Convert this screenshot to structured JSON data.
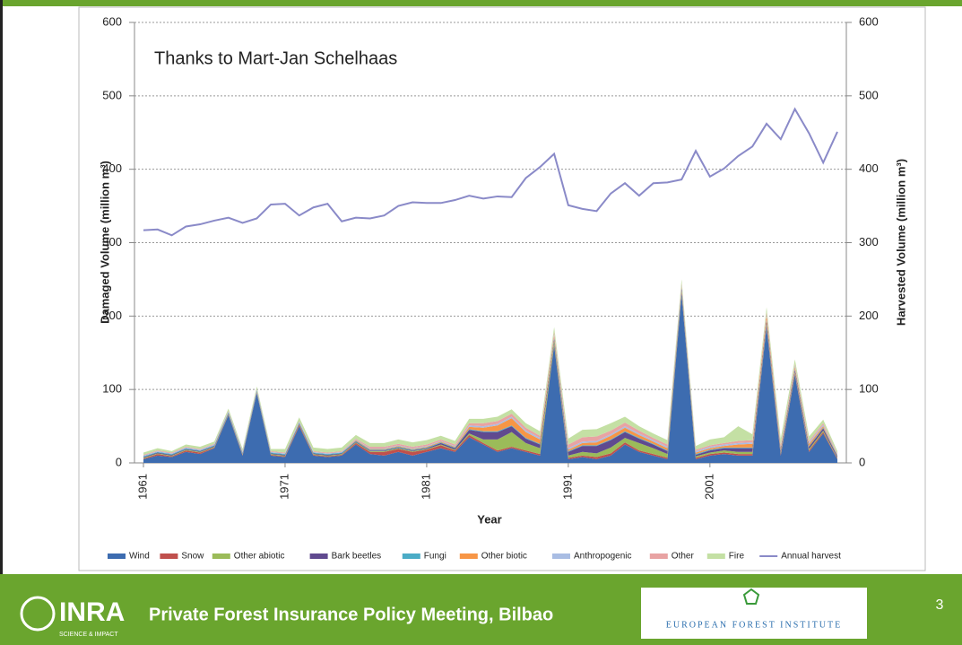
{
  "chart_data": {
    "type": "stacked_area",
    "annotation": "Thanks to Mart-Jan Schelhaas",
    "x_label": "Year",
    "y_label": "Damaged Volume (million m³)",
    "y2_label": "Harvested Volume (million m³)",
    "x": [
      1961,
      1962,
      1963,
      1964,
      1965,
      1966,
      1967,
      1968,
      1969,
      1970,
      1971,
      1972,
      1973,
      1974,
      1975,
      1976,
      1977,
      1978,
      1979,
      1980,
      1981,
      1982,
      1983,
      1984,
      1985,
      1986,
      1987,
      1988,
      1989,
      1990,
      1991,
      1992,
      1993,
      1994,
      1995,
      1996,
      1997,
      1998,
      1999,
      2000,
      2001,
      2002,
      2003,
      2004,
      2005,
      2006,
      2007,
      2008,
      2009,
      2010
    ],
    "xlim": [
      1961,
      2010
    ],
    "xticks": [
      1961,
      1971,
      1981,
      1991,
      2001
    ],
    "ylim": [
      0,
      600
    ],
    "yticks": [
      0,
      100,
      200,
      300,
      400,
      500,
      600
    ],
    "y2lim": [
      0,
      600
    ],
    "y2ticks": [
      0,
      100,
      200,
      300,
      400,
      500,
      600
    ],
    "grid": true,
    "legend": "bottom",
    "series": [
      {
        "name": "Wind",
        "color": "#3d6cb0",
        "values": [
          5,
          10,
          8,
          15,
          12,
          20,
          65,
          10,
          95,
          10,
          8,
          50,
          10,
          8,
          10,
          25,
          12,
          10,
          15,
          10,
          15,
          20,
          15,
          35,
          25,
          15,
          20,
          15,
          10,
          160,
          5,
          8,
          5,
          10,
          25,
          15,
          10,
          5,
          230,
          5,
          10,
          12,
          10,
          10,
          185,
          10,
          120,
          15,
          40,
          5
        ]
      },
      {
        "name": "Snow",
        "color": "#c0504d",
        "values": [
          1,
          2,
          1,
          2,
          2,
          1,
          1,
          1,
          1,
          1,
          1,
          2,
          1,
          1,
          1,
          2,
          3,
          5,
          4,
          5,
          3,
          4,
          2,
          3,
          2,
          2,
          2,
          2,
          2,
          2,
          2,
          2,
          3,
          3,
          3,
          2,
          2,
          2,
          2,
          2,
          2,
          2,
          2,
          2,
          2,
          2,
          2,
          2,
          2,
          1
        ]
      },
      {
        "name": "Other abiotic",
        "color": "#9bbb59",
        "values": [
          1,
          1,
          1,
          1,
          1,
          1,
          1,
          1,
          1,
          1,
          1,
          1,
          1,
          1,
          1,
          1,
          1,
          1,
          1,
          1,
          1,
          1,
          1,
          2,
          5,
          15,
          20,
          10,
          8,
          5,
          3,
          5,
          5,
          8,
          6,
          10,
          8,
          5,
          3,
          2,
          2,
          3,
          3,
          3,
          3,
          2,
          2,
          2,
          2,
          1
        ]
      },
      {
        "name": "Bark beetles",
        "color": "#604a8f",
        "values": [
          1,
          1,
          1,
          1,
          1,
          1,
          1,
          1,
          1,
          1,
          1,
          1,
          1,
          1,
          1,
          1,
          1,
          1,
          1,
          1,
          1,
          2,
          2,
          5,
          10,
          10,
          8,
          6,
          5,
          3,
          5,
          8,
          10,
          10,
          8,
          6,
          5,
          4,
          3,
          2,
          3,
          3,
          5,
          5,
          4,
          3,
          3,
          3,
          3,
          2
        ]
      },
      {
        "name": "Fungi",
        "color": "#4bacc6",
        "values": [
          1,
          1,
          1,
          1,
          1,
          1,
          1,
          1,
          1,
          1,
          1,
          1,
          1,
          1,
          1,
          1,
          1,
          1,
          1,
          1,
          1,
          1,
          1,
          1,
          1,
          1,
          1,
          1,
          1,
          1,
          1,
          1,
          1,
          1,
          1,
          1,
          1,
          1,
          1,
          1,
          1,
          1,
          1,
          1,
          1,
          1,
          1,
          1,
          1,
          1
        ]
      },
      {
        "name": "Other biotic",
        "color": "#f79646",
        "values": [
          0,
          0,
          0,
          0,
          0,
          0,
          0,
          0,
          0,
          0,
          0,
          0,
          0,
          0,
          0,
          1,
          1,
          1,
          1,
          1,
          1,
          1,
          1,
          3,
          5,
          8,
          10,
          8,
          6,
          3,
          2,
          3,
          4,
          5,
          5,
          4,
          3,
          3,
          2,
          2,
          2,
          2,
          4,
          5,
          6,
          3,
          3,
          3,
          2,
          1
        ]
      },
      {
        "name": "Anthropogenic",
        "color": "#a9bde3",
        "values": [
          1,
          1,
          1,
          1,
          1,
          1,
          1,
          1,
          1,
          1,
          1,
          1,
          1,
          1,
          1,
          1,
          1,
          1,
          1,
          1,
          1,
          1,
          1,
          2,
          2,
          2,
          2,
          2,
          2,
          2,
          2,
          2,
          2,
          2,
          2,
          2,
          2,
          2,
          2,
          2,
          2,
          2,
          2,
          2,
          2,
          2,
          2,
          2,
          2,
          1
        ]
      },
      {
        "name": "Other",
        "color": "#e8a3a3",
        "values": [
          1,
          1,
          1,
          1,
          1,
          1,
          1,
          1,
          1,
          1,
          1,
          1,
          1,
          1,
          1,
          1,
          2,
          2,
          2,
          2,
          2,
          2,
          2,
          3,
          4,
          4,
          4,
          4,
          3,
          3,
          5,
          6,
          6,
          5,
          5,
          4,
          3,
          3,
          2,
          2,
          2,
          2,
          3,
          3,
          3,
          2,
          2,
          2,
          2,
          1
        ]
      },
      {
        "name": "Fire",
        "color": "#c4e0a4",
        "values": [
          3,
          3,
          2,
          3,
          3,
          3,
          3,
          3,
          3,
          3,
          5,
          5,
          5,
          5,
          5,
          5,
          5,
          5,
          6,
          6,
          6,
          5,
          5,
          6,
          6,
          6,
          6,
          6,
          6,
          6,
          8,
          10,
          10,
          10,
          8,
          6,
          6,
          6,
          5,
          5,
          8,
          8,
          20,
          8,
          6,
          8,
          6,
          6,
          5,
          3
        ]
      },
      {
        "name": "Annual harvest",
        "color": "#8a8ac8",
        "type": "line",
        "axis": "y2",
        "values": [
          317,
          318,
          310,
          322,
          325,
          330,
          334,
          327,
          333,
          352,
          353,
          337,
          348,
          353,
          329,
          334,
          333,
          337,
          350,
          355,
          354,
          354,
          358,
          364,
          360,
          363,
          362,
          388,
          403,
          421,
          351,
          346,
          343,
          367,
          381,
          364,
          381,
          382,
          386,
          425,
          390,
          401,
          418,
          431,
          462,
          441,
          482,
          449,
          409,
          451
        ]
      }
    ]
  },
  "slide": {
    "logo": "INRA",
    "logo_tagline": "SCIENCE & IMPACT",
    "footer": "Private Forest Insurance Policy Meeting, Bilbao",
    "partner": "EUROPEAN FOREST INSTITUTE",
    "page": "3"
  }
}
